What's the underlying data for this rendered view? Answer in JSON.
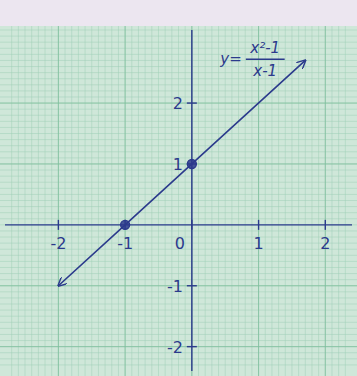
{
  "chart_data": {
    "type": "line",
    "annotation": {
      "lhs": "y=",
      "numerator": "x²-1",
      "denominator": "x-1"
    },
    "xlim": [
      -2.8,
      2.4
    ],
    "ylim": [
      -2.4,
      3.2
    ],
    "xticks": [
      -2,
      -1,
      0,
      1,
      2
    ],
    "yticks": [
      -2,
      -1,
      1,
      2
    ],
    "grid": true,
    "series": [
      {
        "type": "line",
        "x": [
          -2,
          -1,
          0,
          1.7
        ],
        "values": [
          -1,
          0,
          1,
          2.7
        ],
        "color": "#2b3a8c",
        "line_style": "arrows"
      },
      {
        "type": "scatter",
        "x": [
          -1,
          0
        ],
        "values": [
          0,
          1
        ],
        "color": "#2b3a8c",
        "marker": "circle"
      }
    ]
  }
}
